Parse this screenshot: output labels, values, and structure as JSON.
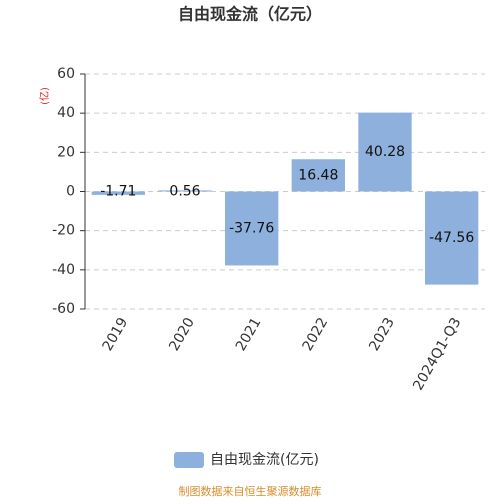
{
  "chart_data": {
    "type": "bar",
    "title": "自由现金流（亿元）",
    "y_label": "(亿)",
    "categories": [
      "2019",
      "2020",
      "2021",
      "2022",
      "2023",
      "2024Q1-Q3"
    ],
    "series": [
      {
        "name": "自由现金流(亿元)",
        "color": "#8eb0dc",
        "values": [
          -1.71,
          0.56,
          -37.76,
          16.48,
          40.28,
          -47.56
        ]
      }
    ],
    "ylim": [
      -60,
      60
    ],
    "yticks": [
      -60,
      -40,
      -20,
      0,
      20,
      40,
      60
    ],
    "grid": true,
    "legend": "bottom",
    "source": "制图数据来自恒生聚源数据库"
  }
}
